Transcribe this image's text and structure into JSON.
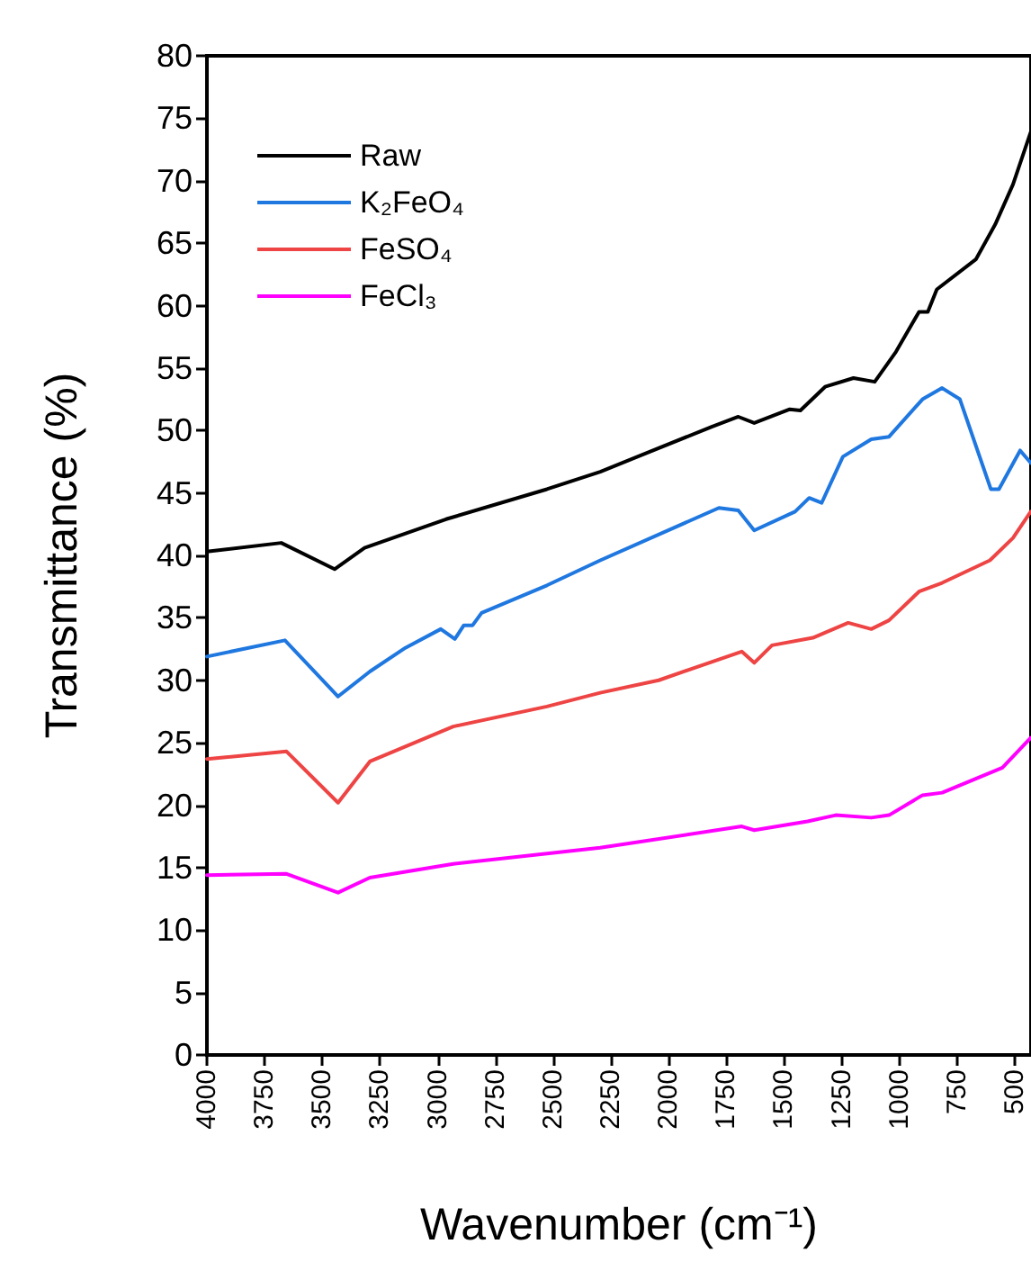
{
  "chart_data": {
    "type": "line",
    "xlabel": "Wavenumber (cm⁻¹)",
    "ylabel": "Transmittance (%)",
    "xlim": [
      4000,
      430
    ],
    "xticks": [
      4000,
      3750,
      3500,
      3250,
      3000,
      2750,
      2500,
      2250,
      2000,
      1750,
      1500,
      1250,
      1000,
      750,
      500
    ],
    "ylim": [
      0,
      80
    ],
    "yticks": [
      0,
      5,
      10,
      15,
      20,
      25,
      30,
      35,
      40,
      45,
      50,
      55,
      60,
      65,
      70,
      75,
      80
    ],
    "grid": false,
    "legend": "top left",
    "marker": "none",
    "line_style": "solid",
    "series": [
      {
        "name": "Raw",
        "color": "#000000",
        "x": [
          4000,
          3678,
          3447,
          3317,
          2964,
          2527,
          2296,
          1813,
          1698,
          1629,
          1475,
          1429,
          1322,
          1199,
          1107,
          1015,
          915,
          877,
          838,
          669,
          585,
          508,
          431
        ],
        "values": [
          40.3,
          41.0,
          38.9,
          40.6,
          42.9,
          45.3,
          46.7,
          50.3,
          51.1,
          50.6,
          51.7,
          51.6,
          53.5,
          54.2,
          53.9,
          56.3,
          59.5,
          59.5,
          61.3,
          63.7,
          66.5,
          69.7,
          73.9
        ]
      },
      {
        "name": "K₂FeO₄",
        "color": "#1f77e0",
        "x": [
          4000,
          3662,
          3432,
          3294,
          3140,
          2987,
          2926,
          2887,
          2849,
          2810,
          2527,
          2296,
          1782,
          1698,
          1629,
          1452,
          1391,
          1337,
          1245,
          1122,
          1045,
          900,
          815,
          738,
          604,
          569,
          477,
          431
        ],
        "values": [
          31.9,
          33.2,
          28.7,
          30.7,
          32.6,
          34.1,
          33.3,
          34.4,
          34.4,
          35.4,
          37.6,
          39.6,
          43.8,
          43.6,
          42.0,
          43.5,
          44.6,
          44.2,
          47.9,
          49.3,
          49.5,
          52.5,
          53.4,
          52.5,
          45.3,
          45.3,
          48.4,
          47.4
        ]
      },
      {
        "name": "FeSO₄",
        "color": "#ee4444",
        "x": [
          4000,
          3655,
          3432,
          3294,
          2933,
          2527,
          2296,
          2043,
          1683,
          1629,
          1552,
          1375,
          1222,
          1122,
          1045,
          915,
          815,
          608,
          508,
          431
        ],
        "values": [
          23.7,
          24.3,
          20.2,
          23.5,
          26.3,
          27.9,
          29.0,
          30.0,
          32.3,
          31.4,
          32.8,
          33.4,
          34.6,
          34.1,
          34.8,
          37.1,
          37.8,
          39.6,
          41.4,
          43.5
        ]
      },
      {
        "name": "FeCl₃",
        "color": "#ff00ff",
        "x": [
          4000,
          3655,
          3432,
          3294,
          2933,
          2296,
          1683,
          1629,
          1398,
          1276,
          1122,
          1045,
          900,
          815,
          554,
          431
        ],
        "values": [
          14.4,
          14.5,
          13.0,
          14.2,
          15.3,
          16.6,
          18.3,
          18.0,
          18.7,
          19.2,
          19.0,
          19.2,
          20.8,
          21.0,
          23.0,
          25.4
        ]
      }
    ]
  }
}
